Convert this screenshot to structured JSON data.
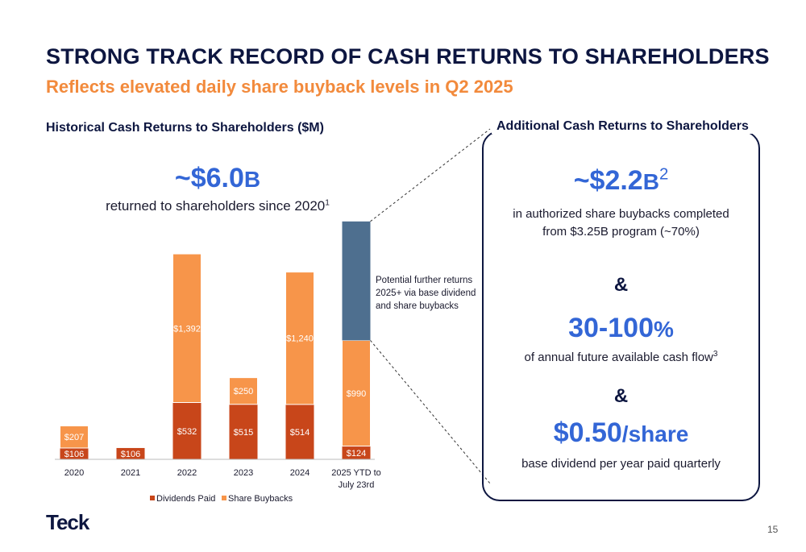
{
  "title": "STRONG TRACK RECORD OF CASH RETURNS TO SHAREHOLDERS",
  "subtitle": "Reflects elevated daily share buyback levels in Q2 2025",
  "left_heading": "Historical Cash Returns to Shareholders ($M)",
  "left_big": {
    "value": "~$6.0",
    "unit": "B"
  },
  "left_sub": {
    "text": "returned to shareholders since 2020",
    "footnote": "1"
  },
  "annotation": "Potential further returns 2025+ via base dividend and share buybacks",
  "right_heading": "Additional Cash Returns to Shareholders",
  "right": {
    "stat1": {
      "value": "~$2.2",
      "unit": "B",
      "footnote": "2"
    },
    "stat1_text_line1": "in authorized share buybacks completed",
    "stat1_text_line2": "from $3.25B program (~70%)",
    "amp1": "&",
    "stat2": {
      "value": "30-100",
      "unit": "%"
    },
    "stat2_text": "of annual future available cash flow",
    "stat2_footnote": "3",
    "amp2": "&",
    "stat3": {
      "value": "$0.50",
      "unit": "/share"
    },
    "stat3_text": "base dividend per year paid quarterly"
  },
  "logo": "Teck",
  "page_number": "15",
  "colors": {
    "navy": "#0d1640",
    "blue": "#3366d6",
    "orange_title": "#f28a3c",
    "dividends": "#c8461a",
    "buybacks": "#f7954a",
    "potential": "#4e6f8f"
  },
  "chart_data": {
    "type": "bar",
    "stacked": true,
    "categories": [
      "2020",
      "2021",
      "2022",
      "2023",
      "2024",
      "2025 YTD to July 23rd"
    ],
    "series": [
      {
        "name": "Dividends Paid",
        "values": [
          106,
          106,
          532,
          515,
          514,
          124
        ],
        "labels": [
          "$106",
          "$106",
          "$532",
          "$515",
          "$514",
          "$124"
        ]
      },
      {
        "name": "Share Buybacks",
        "values": [
          207,
          0,
          1392,
          250,
          1240,
          990
        ],
        "labels": [
          "$207",
          "",
          "$1,392",
          "$250",
          "$1,240",
          "$990"
        ]
      }
    ],
    "potential_further_returns_2025": 1114,
    "legend_position": "bottom",
    "grid": false
  }
}
